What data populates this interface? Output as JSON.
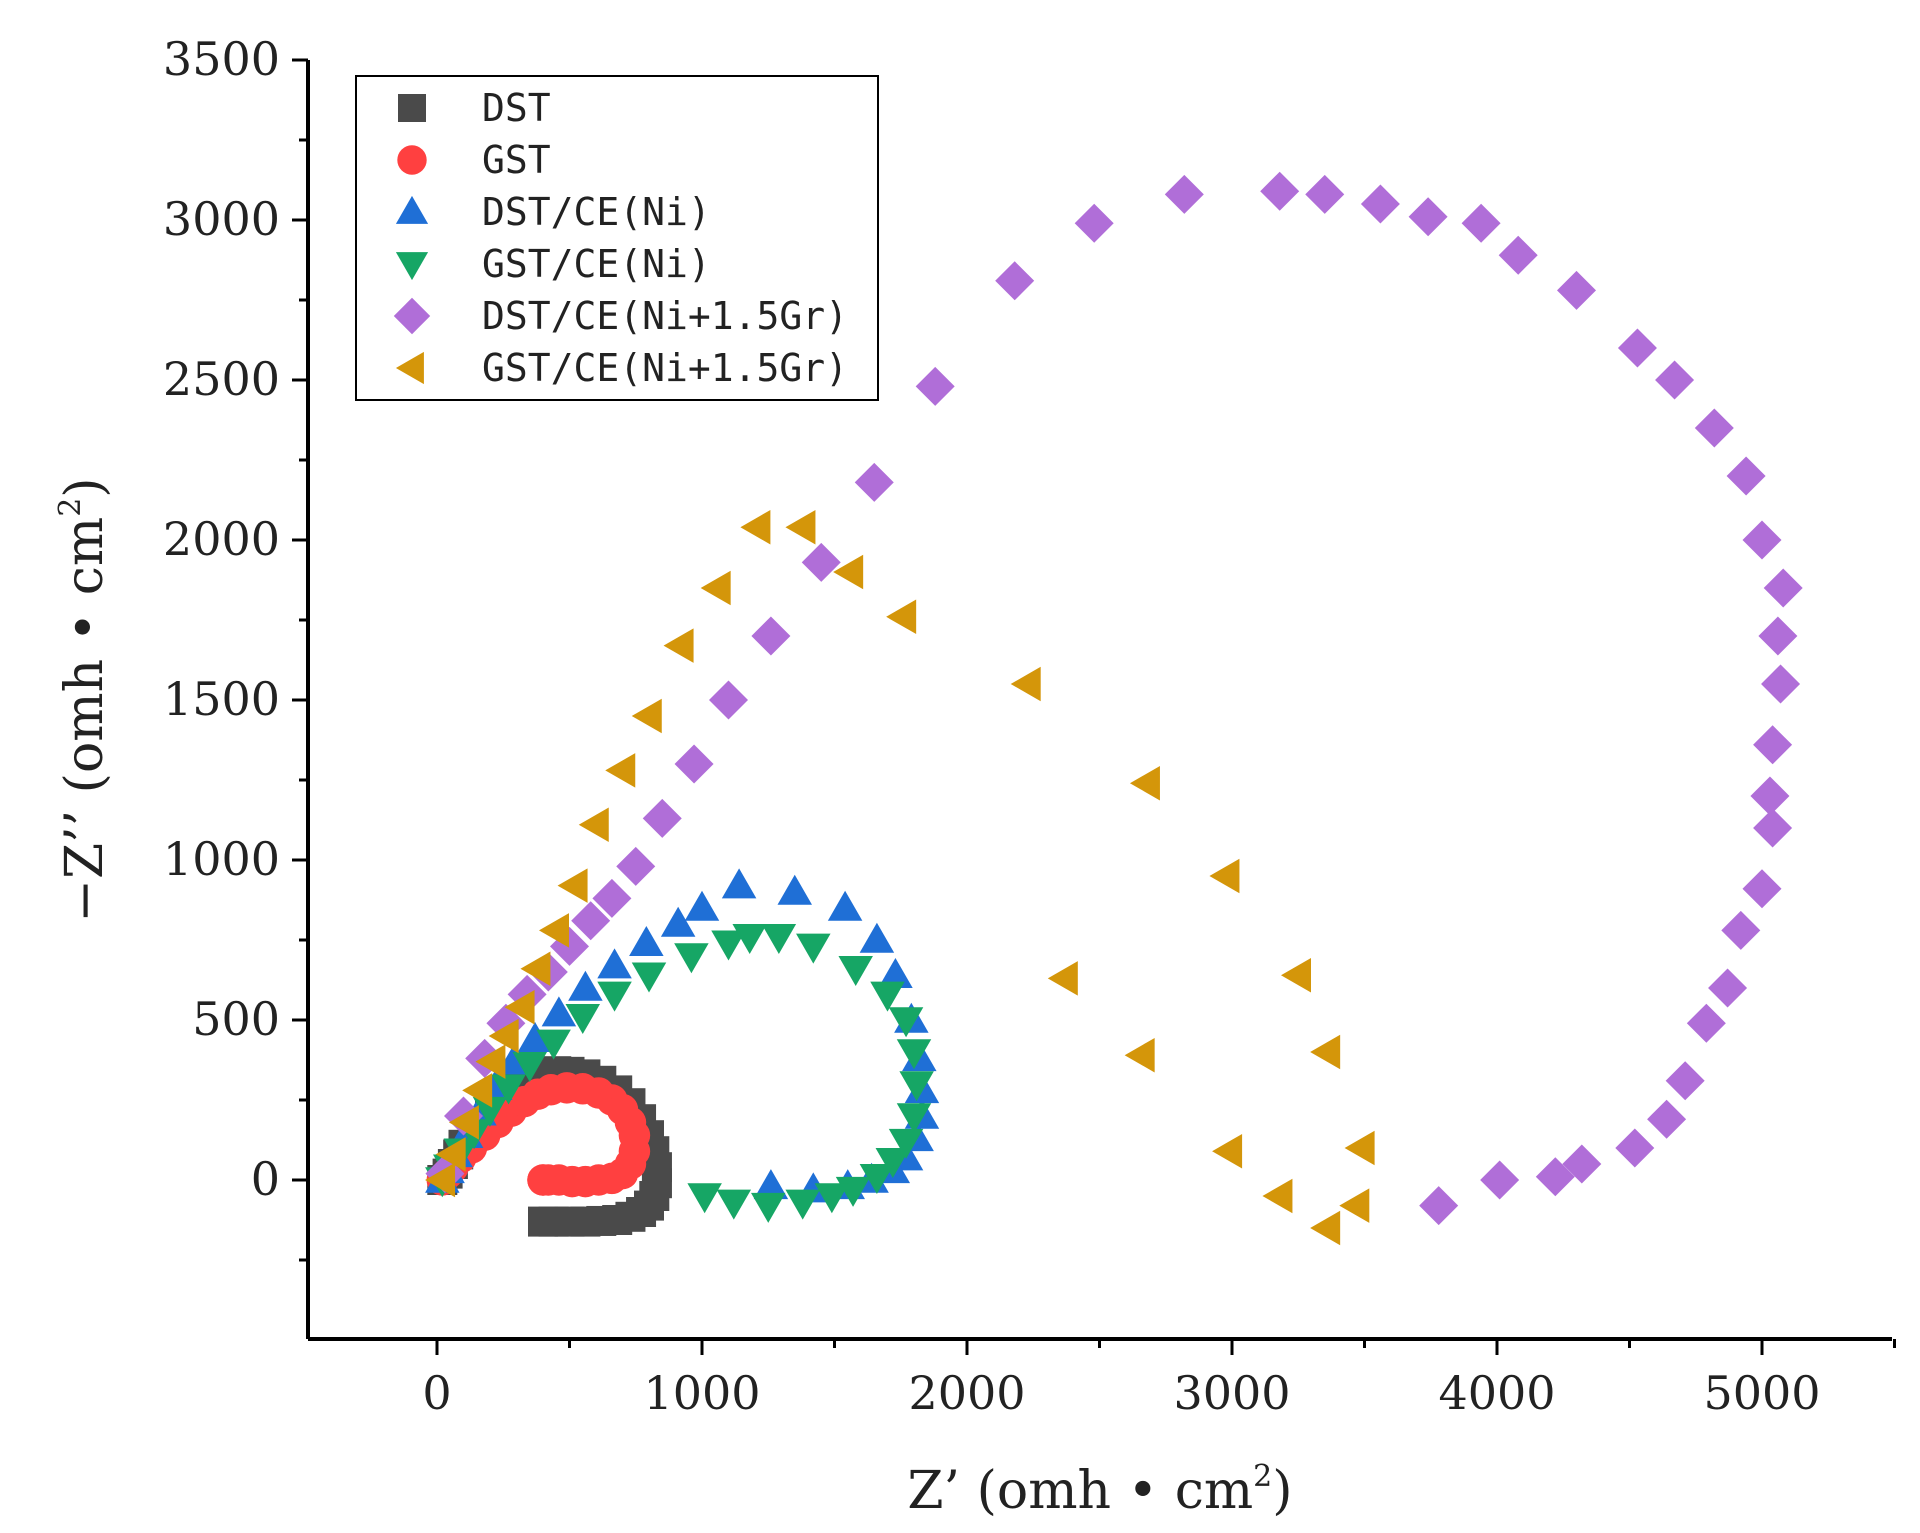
{
  "chart_data": {
    "type": "scatter",
    "title": "",
    "xlabel": "Z’ (omh • cm",
    "xlabel_sup": "2",
    "xlabel_end": ")",
    "ylabel": "−Z’’ (omh • cm",
    "ylabel_sup": "2",
    "ylabel_end": ")",
    "xlim": [
      -500,
      5500
    ],
    "ylim": [
      -500,
      3500
    ],
    "xticks": [
      0,
      1000,
      2000,
      3000,
      4000,
      5000
    ],
    "yticks": [
      0,
      500,
      1000,
      1500,
      2000,
      2500,
      3000,
      3500
    ],
    "xtick_labels": [
      "0",
      "1000",
      "2000",
      "3000",
      "4000",
      "5000"
    ],
    "ytick_labels": [
      "0",
      "500",
      "1000",
      "1500",
      "2000",
      "2500",
      "3000",
      "3500"
    ],
    "legend_position": "top-left",
    "series": [
      {
        "name": "DST",
        "marker": "square",
        "color": "#4a4a4a",
        "x": [
          20,
          40,
          60,
          80,
          100,
          150,
          200,
          250,
          300,
          350,
          400,
          450,
          500,
          560,
          620,
          680,
          730,
          770,
          800,
          820,
          830,
          830,
          820,
          800,
          770,
          730,
          680,
          620,
          560,
          500,
          440,
          400
        ],
        "y": [
          0,
          20,
          50,
          80,
          110,
          170,
          220,
          260,
          295,
          320,
          335,
          340,
          338,
          330,
          310,
          280,
          240,
          190,
          140,
          90,
          40,
          -10,
          -50,
          -80,
          -100,
          -115,
          -125,
          -128,
          -130,
          -130,
          -130,
          -130
        ]
      },
      {
        "name": "GST",
        "marker": "circle",
        "color": "#ff4040",
        "x": [
          20,
          40,
          60,
          90,
          130,
          180,
          230,
          280,
          330,
          380,
          430,
          490,
          550,
          610,
          660,
          700,
          730,
          745,
          745,
          730,
          700,
          660,
          610,
          560,
          510,
          460,
          420,
          400,
          400
        ],
        "y": [
          0,
          20,
          40,
          70,
          100,
          140,
          180,
          215,
          245,
          268,
          282,
          288,
          285,
          272,
          250,
          220,
          180,
          140,
          90,
          50,
          20,
          5,
          0,
          -5,
          -5,
          0,
          0,
          0,
          0
        ]
      },
      {
        "name": "DST/CE(Ni)",
        "marker": "triangle-up",
        "color": "#1f6fd6",
        "x": [
          20,
          40,
          70,
          110,
          160,
          220,
          290,
          370,
          460,
          560,
          670,
          790,
          910,
          1000,
          1140,
          1350,
          1540,
          1660,
          1730,
          1790,
          1820,
          1830,
          1830,
          1810,
          1770,
          1720,
          1640,
          1550,
          1420,
          1260
        ],
        "y": [
          0,
          30,
          80,
          140,
          210,
          290,
          370,
          440,
          520,
          600,
          670,
          740,
          800,
          850,
          920,
          900,
          850,
          750,
          640,
          500,
          380,
          280,
          200,
          130,
          70,
          30,
          0,
          -20,
          -30,
          -20
        ]
      },
      {
        "name": "GST/CE(Ni)",
        "marker": "triangle-down",
        "color": "#16a665",
        "x": [
          20,
          50,
          90,
          140,
          200,
          270,
          350,
          440,
          550,
          670,
          800,
          960,
          1100,
          1180,
          1290,
          1420,
          1580,
          1700,
          1770,
          1800,
          1810,
          1800,
          1770,
          1720,
          1660,
          1570,
          1490,
          1380,
          1250,
          1120,
          1010
        ],
        "y": [
          0,
          40,
          90,
          150,
          220,
          290,
          360,
          430,
          510,
          580,
          640,
          700,
          740,
          760,
          760,
          730,
          660,
          580,
          500,
          400,
          300,
          200,
          120,
          60,
          10,
          -30,
          -50,
          -70,
          -80,
          -70,
          -50
        ]
      },
      {
        "name": "DST/CE(Ni+1.5Gr)",
        "marker": "diamond",
        "color": "#b06ed8",
        "x": [
          30,
          100,
          180,
          260,
          340,
          420,
          500,
          580,
          660,
          750,
          850,
          970,
          1100,
          1260,
          1450,
          1650,
          1880,
          2180,
          2480,
          2820,
          3180,
          3350,
          3560,
          3740,
          3940,
          4080,
          4300,
          4530,
          4670,
          4820,
          4940,
          5000,
          5080,
          5060,
          5070,
          5040,
          5030,
          5040,
          5000,
          4920,
          4870,
          4790,
          4710,
          4640,
          4520,
          4320,
          4220,
          4010,
          3780
        ],
        "y": [
          20,
          200,
          380,
          490,
          580,
          650,
          730,
          810,
          880,
          980,
          1130,
          1300,
          1500,
          1700,
          1930,
          2180,
          2480,
          2810,
          2990,
          3080,
          3090,
          3080,
          3050,
          3010,
          2990,
          2890,
          2780,
          2600,
          2500,
          2350,
          2200,
          2000,
          1850,
          1700,
          1550,
          1360,
          1200,
          1100,
          910,
          780,
          600,
          490,
          310,
          190,
          100,
          50,
          10,
          0,
          -80
        ]
      },
      {
        "name": "GST/CE(Ni+1.5Gr)",
        "marker": "triangle-left",
        "color": "#d4960a",
        "x": [
          20,
          60,
          110,
          160,
          210,
          260,
          320,
          380,
          450,
          520,
          600,
          700,
          800,
          920,
          1060,
          1210,
          1380,
          1560,
          1760,
          2230,
          2680,
          2980,
          3250,
          3360,
          3490,
          3470,
          3360,
          3180,
          2990,
          2660,
          2370
        ],
        "y": [
          0,
          80,
          180,
          280,
          370,
          450,
          540,
          660,
          780,
          920,
          1110,
          1280,
          1450,
          1670,
          1850,
          2040,
          2040,
          1900,
          1760,
          1550,
          1240,
          950,
          640,
          400,
          100,
          -80,
          -150,
          -50,
          90,
          390,
          630
        ]
      }
    ]
  }
}
